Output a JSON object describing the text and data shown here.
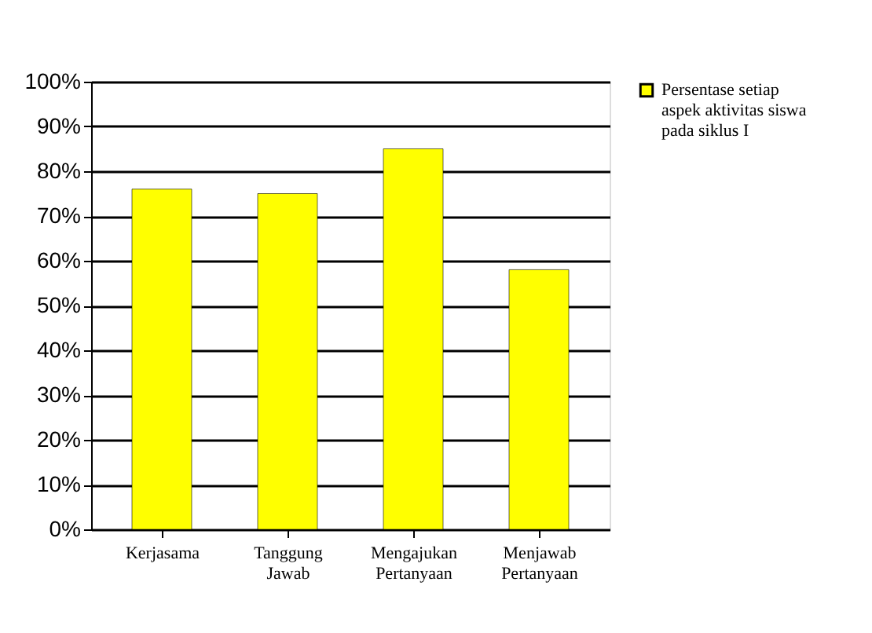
{
  "chart_data": {
    "type": "bar",
    "categories": [
      "Kerjasama",
      "Tanggung Jawab",
      "Mengajukan Pertanyaan",
      "Menjawab Pertanyaan"
    ],
    "series": [
      {
        "name": "Persentase setiap aspek aktivitas siswa pada siklus I",
        "color": "#ffff00",
        "values": [
          76,
          75,
          85,
          58
        ]
      }
    ],
    "ylim": [
      0,
      100
    ],
    "yticks": [
      {
        "value": 0,
        "label": "0%"
      },
      {
        "value": 10,
        "label": "10%"
      },
      {
        "value": 20,
        "label": "20%"
      },
      {
        "value": 30,
        "label": "30%"
      },
      {
        "value": 40,
        "label": "40%"
      },
      {
        "value": 50,
        "label": "50%"
      },
      {
        "value": 60,
        "label": "60%"
      },
      {
        "value": 70,
        "label": "70%"
      },
      {
        "value": 80,
        "label": "80%"
      },
      {
        "value": 90,
        "label": "90%"
      },
      {
        "value": 100,
        "label": "100%"
      }
    ],
    "grid": "y",
    "legend": "right"
  }
}
